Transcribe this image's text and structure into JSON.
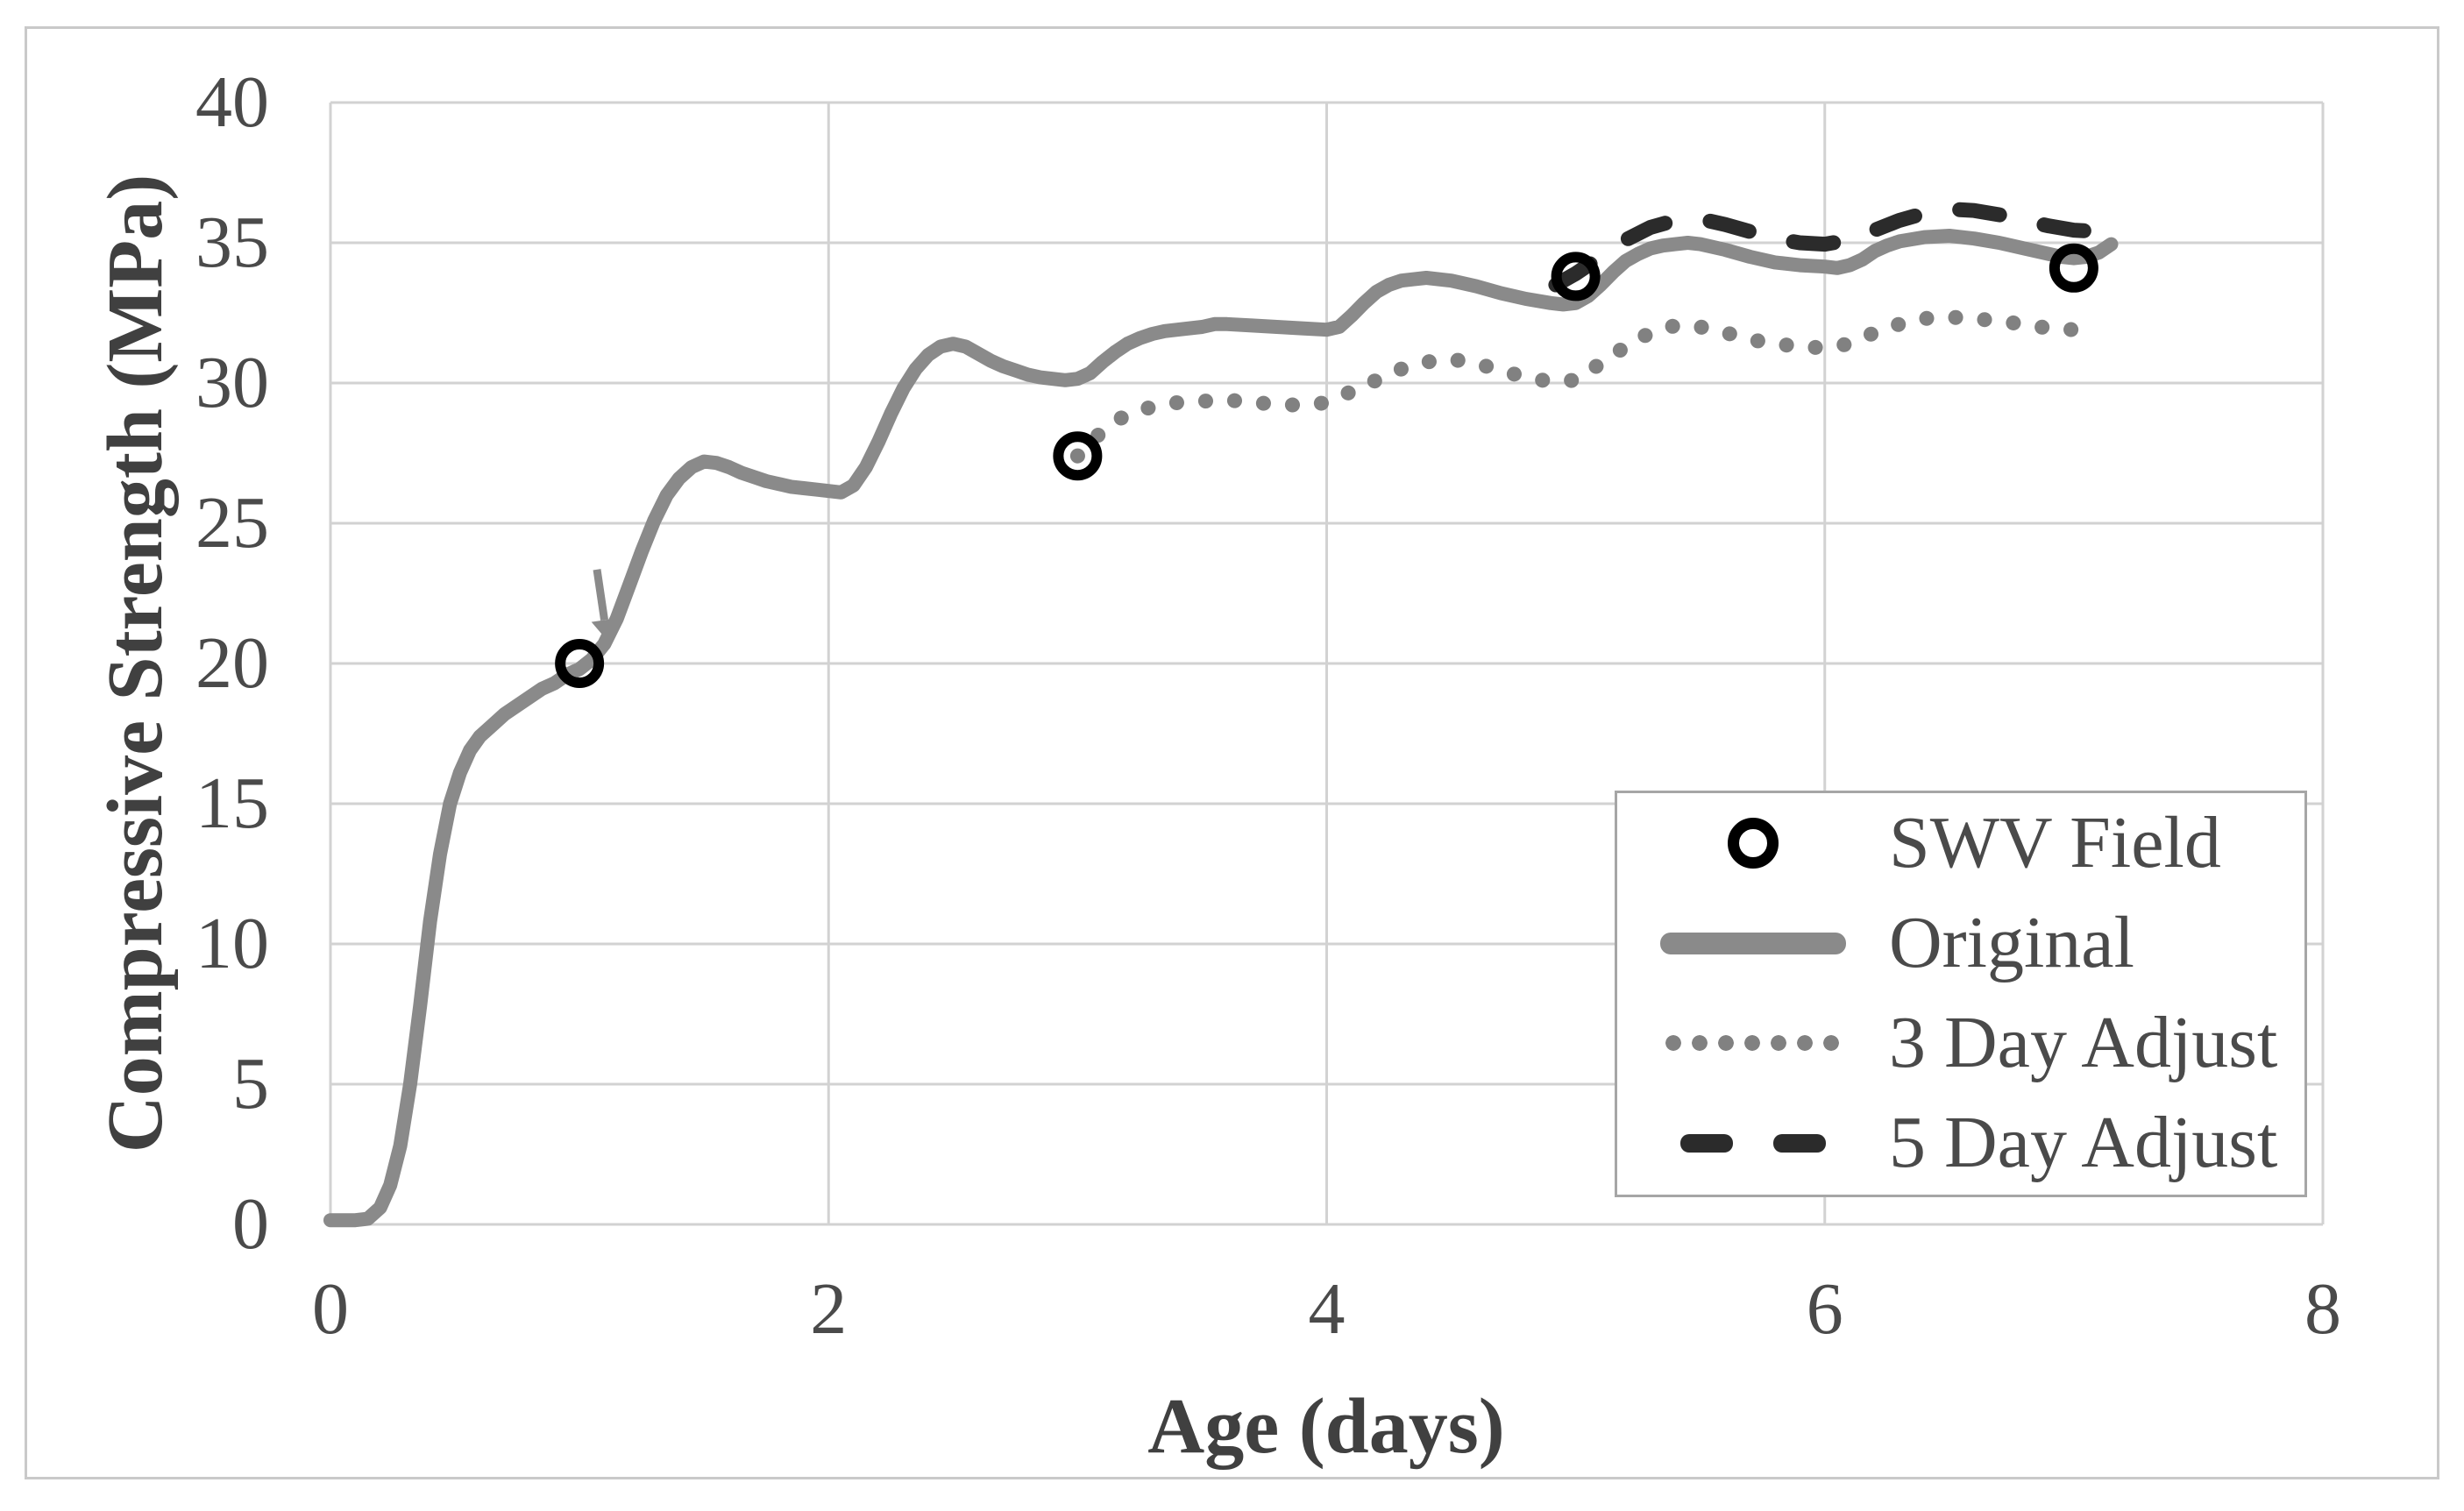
{
  "figure": {
    "x_axis": {
      "title": "Age (days)",
      "ticks": [
        "0",
        "2",
        "4",
        "6",
        "8"
      ],
      "range": [
        0,
        8
      ]
    },
    "y_axis": {
      "title": "Compressive Strength (MPa)",
      "ticks": [
        "0",
        "5",
        "10",
        "15",
        "20",
        "25",
        "30",
        "35",
        "40"
      ],
      "range": [
        0,
        40
      ]
    },
    "legend": {
      "items": [
        {
          "label": "SWV Field",
          "glyph": "open-circle"
        },
        {
          "label": "Original",
          "glyph": "solid-line"
        },
        {
          "label": "3 Day Adjust",
          "glyph": "dotted-line"
        },
        {
          "label": "5 Day Adjust",
          "glyph": "dashed-line"
        }
      ]
    },
    "colors": {
      "original": "#8a8a8a",
      "three_day_adjust": "#818181",
      "five_day_adjust": "#2b2b2b",
      "swv_field": "#000000",
      "grid": "#d2d2d2",
      "text": "#4a4a4a",
      "legend_border": "#a6a6a6",
      "figure_border": "#c9c9c9"
    }
  },
  "chart_data": {
    "type": "line",
    "title": "",
    "xlabel": "Age (days)",
    "ylabel": "Compressive Strength (MPa)",
    "xlim": [
      0,
      8
    ],
    "ylim": [
      0,
      40
    ],
    "grid": true,
    "legend_position": "lower right",
    "series": [
      {
        "name": "Original",
        "style": "solid",
        "color": "#8a8a8a",
        "width": 16,
        "points": [
          [
            0,
            0.15
          ],
          [
            0.1,
            0.15
          ],
          [
            0.15,
            0.2
          ],
          [
            0.2,
            0.6
          ],
          [
            0.24,
            1.4
          ],
          [
            0.28,
            2.8
          ],
          [
            0.32,
            5
          ],
          [
            0.36,
            7.8
          ],
          [
            0.4,
            10.8
          ],
          [
            0.44,
            13.2
          ],
          [
            0.48,
            15
          ],
          [
            0.52,
            16.1
          ],
          [
            0.56,
            16.9
          ],
          [
            0.6,
            17.4
          ],
          [
            0.65,
            17.8
          ],
          [
            0.7,
            18.2
          ],
          [
            0.75,
            18.5
          ],
          [
            0.8,
            18.8
          ],
          [
            0.85,
            19.1
          ],
          [
            0.9,
            19.3
          ],
          [
            0.95,
            19.6
          ],
          [
            1,
            19.8
          ],
          [
            1.05,
            20.15
          ],
          [
            1.1,
            20.7
          ],
          [
            1.15,
            21.6
          ],
          [
            1.2,
            22.8
          ],
          [
            1.25,
            24
          ],
          [
            1.3,
            25.1
          ],
          [
            1.35,
            26
          ],
          [
            1.4,
            26.6
          ],
          [
            1.45,
            27
          ],
          [
            1.5,
            27.2
          ],
          [
            1.55,
            27.15
          ],
          [
            1.6,
            27
          ],
          [
            1.65,
            26.8
          ],
          [
            1.7,
            26.65
          ],
          [
            1.75,
            26.5
          ],
          [
            1.8,
            26.4
          ],
          [
            1.85,
            26.3
          ],
          [
            1.9,
            26.25
          ],
          [
            1.95,
            26.2
          ],
          [
            2,
            26.15
          ],
          [
            2.05,
            26.1
          ],
          [
            2.1,
            26.35
          ],
          [
            2.15,
            27
          ],
          [
            2.2,
            27.9
          ],
          [
            2.25,
            28.9
          ],
          [
            2.3,
            29.8
          ],
          [
            2.35,
            30.5
          ],
          [
            2.4,
            31
          ],
          [
            2.45,
            31.3
          ],
          [
            2.5,
            31.4
          ],
          [
            2.55,
            31.3
          ],
          [
            2.6,
            31.05
          ],
          [
            2.65,
            30.8
          ],
          [
            2.7,
            30.6
          ],
          [
            2.75,
            30.45
          ],
          [
            2.8,
            30.3
          ],
          [
            2.85,
            30.2
          ],
          [
            2.9,
            30.15
          ],
          [
            2.95,
            30.1
          ],
          [
            3,
            30.15
          ],
          [
            3.05,
            30.35
          ],
          [
            3.1,
            30.75
          ],
          [
            3.15,
            31.1
          ],
          [
            3.2,
            31.4
          ],
          [
            3.25,
            31.6
          ],
          [
            3.3,
            31.75
          ],
          [
            3.35,
            31.85
          ],
          [
            3.4,
            31.9
          ],
          [
            3.5,
            32
          ],
          [
            3.55,
            32.1
          ],
          [
            3.6,
            32.1
          ],
          [
            3.7,
            32.05
          ],
          [
            3.8,
            32
          ],
          [
            3.9,
            31.95
          ],
          [
            4,
            31.9
          ],
          [
            4.05,
            32
          ],
          [
            4.1,
            32.4
          ],
          [
            4.15,
            32.85
          ],
          [
            4.2,
            33.25
          ],
          [
            4.25,
            33.5
          ],
          [
            4.3,
            33.65
          ],
          [
            4.35,
            33.7
          ],
          [
            4.4,
            33.75
          ],
          [
            4.5,
            33.65
          ],
          [
            4.6,
            33.45
          ],
          [
            4.7,
            33.2
          ],
          [
            4.8,
            33
          ],
          [
            4.9,
            32.85
          ],
          [
            4.95,
            32.8
          ],
          [
            5,
            32.85
          ],
          [
            5.05,
            33.1
          ],
          [
            5.1,
            33.5
          ],
          [
            5.15,
            33.95
          ],
          [
            5.2,
            34.35
          ],
          [
            5.25,
            34.6
          ],
          [
            5.3,
            34.8
          ],
          [
            5.35,
            34.9
          ],
          [
            5.4,
            34.95
          ],
          [
            5.45,
            35
          ],
          [
            5.5,
            34.95
          ],
          [
            5.6,
            34.75
          ],
          [
            5.7,
            34.5
          ],
          [
            5.8,
            34.3
          ],
          [
            5.9,
            34.2
          ],
          [
            6,
            34.15
          ],
          [
            6.05,
            34.1
          ],
          [
            6.1,
            34.2
          ],
          [
            6.15,
            34.4
          ],
          [
            6.2,
            34.7
          ],
          [
            6.25,
            34.9
          ],
          [
            6.3,
            35.05
          ],
          [
            6.4,
            35.2
          ],
          [
            6.5,
            35.25
          ],
          [
            6.6,
            35.15
          ],
          [
            6.7,
            35
          ],
          [
            6.8,
            34.8
          ],
          [
            6.9,
            34.6
          ],
          [
            6.95,
            34.5
          ],
          [
            7,
            34.45
          ],
          [
            7.05,
            34.5
          ],
          [
            7.1,
            34.65
          ],
          [
            7.15,
            34.95
          ]
        ]
      },
      {
        "name": "3 Day Adjust",
        "style": "dotted",
        "color": "#818181",
        "width": 17,
        "points": [
          [
            3,
            27.4
          ],
          [
            3.1,
            28.3
          ],
          [
            3.2,
            28.9
          ],
          [
            3.3,
            29.15
          ],
          [
            3.4,
            29.3
          ],
          [
            3.5,
            29.35
          ],
          [
            3.6,
            29.4
          ],
          [
            3.7,
            29.3
          ],
          [
            3.8,
            29.25
          ],
          [
            3.9,
            29.2
          ],
          [
            4,
            29.3
          ],
          [
            4.1,
            29.7
          ],
          [
            4.2,
            30.1
          ],
          [
            4.3,
            30.5
          ],
          [
            4.4,
            30.75
          ],
          [
            4.5,
            30.85
          ],
          [
            4.6,
            30.7
          ],
          [
            4.7,
            30.45
          ],
          [
            4.8,
            30.2
          ],
          [
            4.9,
            30.05
          ],
          [
            5,
            30.1
          ],
          [
            5.1,
            30.7
          ],
          [
            5.2,
            31.3
          ],
          [
            5.3,
            31.8
          ],
          [
            5.4,
            32.05
          ],
          [
            5.5,
            32
          ],
          [
            5.6,
            31.8
          ],
          [
            5.7,
            31.55
          ],
          [
            5.8,
            31.4
          ],
          [
            5.9,
            31.3
          ],
          [
            6,
            31.25
          ],
          [
            6.1,
            31.4
          ],
          [
            6.2,
            31.8
          ],
          [
            6.3,
            32.1
          ],
          [
            6.4,
            32.3
          ],
          [
            6.5,
            32.35
          ],
          [
            6.6,
            32.3
          ],
          [
            6.7,
            32.2
          ],
          [
            6.8,
            32.1
          ],
          [
            6.9,
            31.95
          ],
          [
            7,
            31.9
          ],
          [
            7.1,
            31.75
          ]
        ]
      },
      {
        "name": "5 Day Adjust",
        "style": "dashed",
        "color": "#2b2b2b",
        "width": 17,
        "points": [
          [
            4.92,
            33.5
          ],
          [
            5,
            33.9
          ],
          [
            5.1,
            34.5
          ],
          [
            5.2,
            35.1
          ],
          [
            5.3,
            35.55
          ],
          [
            5.4,
            35.8
          ],
          [
            5.5,
            35.85
          ],
          [
            5.6,
            35.65
          ],
          [
            5.7,
            35.4
          ],
          [
            5.8,
            35.15
          ],
          [
            5.9,
            35
          ],
          [
            6,
            34.95
          ],
          [
            6.1,
            35.1
          ],
          [
            6.2,
            35.45
          ],
          [
            6.3,
            35.8
          ],
          [
            6.4,
            36.05
          ],
          [
            6.5,
            36.2
          ],
          [
            6.6,
            36.15
          ],
          [
            6.7,
            36
          ],
          [
            6.8,
            35.8
          ],
          [
            6.9,
            35.6
          ],
          [
            7,
            35.45
          ],
          [
            7.1,
            35.4
          ]
        ]
      },
      {
        "name": "SWV Field",
        "style": "scatter-open-circle",
        "color": "#000000",
        "points": [
          [
            1,
            20
          ],
          [
            3,
            27.4
          ],
          [
            5,
            33.8
          ],
          [
            7,
            34.1
          ]
        ]
      }
    ],
    "annotations": [
      {
        "type": "arrow",
        "from": [
          1.07,
          23.35
        ],
        "to": [
          1.1,
          21.55
        ],
        "color": "#8a8a8a"
      }
    ]
  }
}
